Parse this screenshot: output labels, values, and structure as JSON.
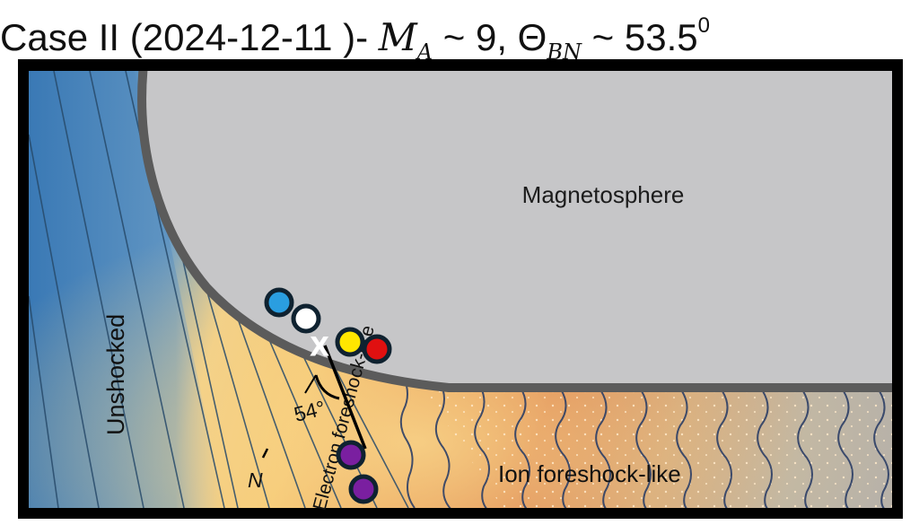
{
  "title": {
    "prefix": "Case II  (2024-12-11 )- ",
    "mach_symbol": "M",
    "mach_subscript": "A",
    "mach_value": " ~ 9, ",
    "theta_symbol": "Θ",
    "theta_subscript": "BN",
    "theta_value": " ~ 53.5",
    "theta_superscript": "0"
  },
  "regions": {
    "magnetosphere": "Magnetosphere",
    "unshocked": "Unshocked",
    "electron_foreshock": "Electron foreshock-like",
    "ion_foreshock": "Ion foreshock-like"
  },
  "annotations": {
    "angle_label": "54°",
    "normal_label": "N",
    "marker_symbol": "X"
  },
  "markers": {
    "colors": [
      "#2a9ee0",
      "#ffffff",
      "#ffe600",
      "#e01010",
      "#7a1fa0",
      "#7a1fa0"
    ]
  },
  "colors": {
    "solar_wind": "#4a86b8",
    "magnetosphere": "#c6c6c8",
    "foreshock_warm": "#f3c56f",
    "ion_foreshock": "#d85a30"
  }
}
